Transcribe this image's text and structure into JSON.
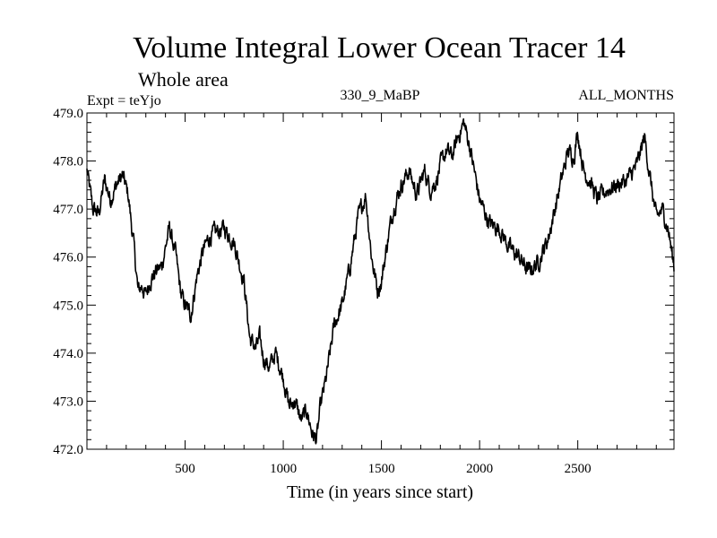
{
  "chart_data": {
    "type": "line",
    "title": "Volume Integral Lower Ocean Tracer 14",
    "subtitle": "Whole area",
    "info_left": "Expt = teYjo",
    "info_center": "330_9_MaBP",
    "info_right": "ALL_MONTHS",
    "xlabel": "Time (in years since start)",
    "ylabel": "",
    "xlim": [
      0,
      2990
    ],
    "ylim": [
      472.0,
      479.0
    ],
    "x_ticks": [
      500,
      1000,
      1500,
      2000,
      2500
    ],
    "x_tick_labels": [
      "500",
      "1000",
      "1500",
      "2000",
      "2500"
    ],
    "y_ticks": [
      472.0,
      473.0,
      474.0,
      475.0,
      476.0,
      477.0,
      478.0,
      479.0
    ],
    "y_tick_labels": [
      "472.0",
      "473.0",
      "474.0",
      "475.0",
      "476.0",
      "477.0",
      "478.0",
      "479.0"
    ],
    "series": [
      {
        "name": "Volume Integral Lower Ocean Tracer 14",
        "color": "#000000",
        "x": [
          0,
          30,
          60,
          90,
          120,
          150,
          180,
          210,
          240,
          260,
          280,
          300,
          320,
          350,
          380,
          420,
          450,
          480,
          500,
          530,
          560,
          590,
          620,
          650,
          700,
          750,
          800,
          830,
          860,
          880,
          900,
          930,
          960,
          1000,
          1030,
          1060,
          1090,
          1120,
          1150,
          1170,
          1190,
          1220,
          1260,
          1300,
          1340,
          1380,
          1420,
          1450,
          1480,
          1500,
          1530,
          1560,
          1600,
          1640,
          1680,
          1720,
          1750,
          1780,
          1800,
          1830,
          1860,
          1890,
          1920,
          1950,
          2000,
          2050,
          2100,
          2150,
          2200,
          2250,
          2300,
          2350,
          2400,
          2450,
          2480,
          2500,
          2530,
          2560,
          2600,
          2650,
          2700,
          2750,
          2800,
          2840,
          2870,
          2900,
          2930,
          2960,
          2990
        ],
        "values": [
          477.8,
          477.0,
          476.9,
          477.6,
          477.2,
          477.5,
          477.7,
          477.3,
          476.2,
          475.3,
          475.4,
          475.2,
          475.5,
          475.7,
          475.8,
          476.6,
          476.1,
          475.2,
          475.0,
          474.8,
          475.6,
          476.1,
          476.4,
          476.5,
          476.6,
          476.3,
          475.5,
          474.3,
          474.1,
          474.3,
          473.9,
          473.7,
          474.0,
          473.5,
          472.9,
          473.0,
          472.6,
          472.8,
          472.3,
          472.2,
          472.9,
          473.5,
          474.6,
          475.0,
          475.8,
          476.8,
          477.3,
          476.0,
          475.3,
          475.5,
          476.3,
          477.0,
          477.5,
          477.8,
          477.3,
          477.8,
          477.4,
          477.6,
          477.9,
          478.2,
          478.1,
          478.5,
          478.8,
          478.3,
          477.2,
          476.7,
          476.6,
          476.2,
          476.0,
          475.7,
          475.9,
          476.4,
          477.3,
          478.2,
          478.1,
          478.6,
          477.8,
          477.6,
          477.2,
          477.4,
          477.5,
          477.6,
          477.9,
          478.5,
          477.6,
          476.8,
          477.0,
          476.6,
          475.8
        ]
      }
    ]
  }
}
